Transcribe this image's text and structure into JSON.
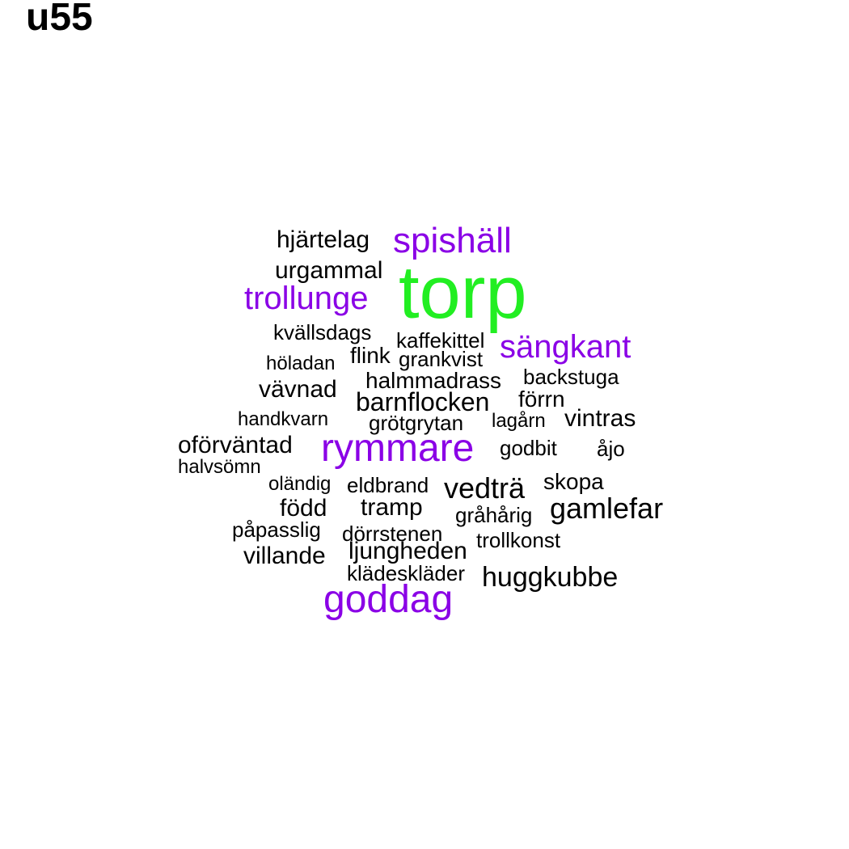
{
  "title": "u55",
  "colors": {
    "largest": "#22ee22",
    "emphasis": "#8a00e6",
    "default": "#000000"
  },
  "words": [
    {
      "text": "torp",
      "tier": "largest"
    },
    {
      "text": "spishäll",
      "tier": "emphasis"
    },
    {
      "text": "trollunge",
      "tier": "emphasis"
    },
    {
      "text": "sängkant",
      "tier": "emphasis"
    },
    {
      "text": "rymmare",
      "tier": "emphasis"
    },
    {
      "text": "goddag",
      "tier": "emphasis"
    },
    {
      "text": "hjärtelag",
      "tier": "default"
    },
    {
      "text": "urgammal",
      "tier": "default"
    },
    {
      "text": "kvällsdags",
      "tier": "default"
    },
    {
      "text": "kaffekittel",
      "tier": "default"
    },
    {
      "text": "höladan",
      "tier": "default"
    },
    {
      "text": "flink",
      "tier": "default"
    },
    {
      "text": "grankvist",
      "tier": "default"
    },
    {
      "text": "halmmadrass",
      "tier": "default"
    },
    {
      "text": "backstuga",
      "tier": "default"
    },
    {
      "text": "vävnad",
      "tier": "default"
    },
    {
      "text": "barnflocken",
      "tier": "default"
    },
    {
      "text": "förrn",
      "tier": "default"
    },
    {
      "text": "handkvarn",
      "tier": "default"
    },
    {
      "text": "grötgrytan",
      "tier": "default"
    },
    {
      "text": "lagårn",
      "tier": "default"
    },
    {
      "text": "vintras",
      "tier": "default"
    },
    {
      "text": "oförväntad",
      "tier": "default"
    },
    {
      "text": "godbit",
      "tier": "default"
    },
    {
      "text": "åjo",
      "tier": "default"
    },
    {
      "text": "halvsömn",
      "tier": "default"
    },
    {
      "text": "oländig",
      "tier": "default"
    },
    {
      "text": "eldbrand",
      "tier": "default"
    },
    {
      "text": "vedträ",
      "tier": "default"
    },
    {
      "text": "skopa",
      "tier": "default"
    },
    {
      "text": "född",
      "tier": "default"
    },
    {
      "text": "tramp",
      "tier": "default"
    },
    {
      "text": "gråhårig",
      "tier": "default"
    },
    {
      "text": "gamlefar",
      "tier": "default"
    },
    {
      "text": "påpasslig",
      "tier": "default"
    },
    {
      "text": "dörrstenen",
      "tier": "default"
    },
    {
      "text": "trollkonst",
      "tier": "default"
    },
    {
      "text": "villande",
      "tier": "default"
    },
    {
      "text": "ljungheden",
      "tier": "default"
    },
    {
      "text": "klädeskläder",
      "tier": "default"
    },
    {
      "text": "huggkubbe",
      "tier": "default"
    }
  ]
}
